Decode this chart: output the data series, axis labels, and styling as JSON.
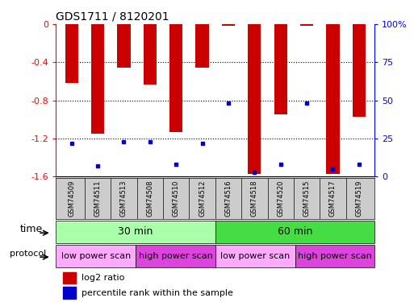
{
  "title": "GDS1711 / 8120201",
  "samples": [
    "GSM74509",
    "GSM74511",
    "GSM74513",
    "GSM74508",
    "GSM74510",
    "GSM74512",
    "GSM74516",
    "GSM74518",
    "GSM74520",
    "GSM74515",
    "GSM74517",
    "GSM74519"
  ],
  "log2_ratio": [
    -0.62,
    -1.15,
    -0.46,
    -0.63,
    -1.13,
    -0.46,
    -0.02,
    -1.57,
    -0.95,
    -0.02,
    -1.57,
    -0.97
  ],
  "percentile_rank": [
    22,
    7,
    23,
    23,
    8,
    22,
    48,
    3,
    8,
    48,
    5,
    8
  ],
  "ylim_left": [
    -1.6,
    0.0
  ],
  "ylim_right": [
    0,
    100
  ],
  "yticks_left": [
    -1.6,
    -1.2,
    -0.8,
    -0.4,
    0
  ],
  "yticks_right": [
    0,
    25,
    50,
    75,
    100
  ],
  "bar_color": "#cc0000",
  "dot_color": "#0000cc",
  "time_groups": [
    {
      "label": "30 min",
      "start": 0,
      "end": 6,
      "color": "#aaffaa"
    },
    {
      "label": "60 min",
      "start": 6,
      "end": 12,
      "color": "#44dd44"
    }
  ],
  "protocol_groups": [
    {
      "label": "low power scan",
      "start": 0,
      "end": 3,
      "color": "#ffaaff"
    },
    {
      "label": "high power scan",
      "start": 3,
      "end": 6,
      "color": "#dd44dd"
    },
    {
      "label": "low power scan",
      "start": 6,
      "end": 9,
      "color": "#ffaaff"
    },
    {
      "label": "high power scan",
      "start": 9,
      "end": 12,
      "color": "#dd44dd"
    }
  ],
  "legend_items": [
    {
      "label": "log2 ratio",
      "color": "#cc0000"
    },
    {
      "label": "percentile rank within the sample",
      "color": "#0000cc"
    }
  ],
  "sample_bg_color": "#cccccc",
  "bar_width": 0.5
}
